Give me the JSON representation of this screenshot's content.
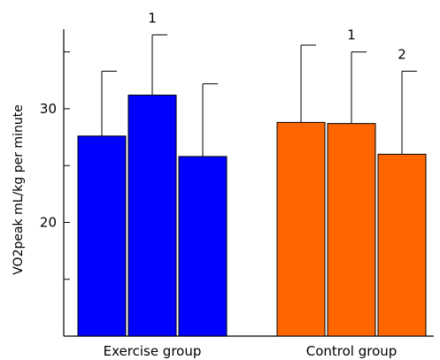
{
  "chart_data": {
    "type": "bar",
    "title": "",
    "xlabel": "",
    "ylabel": "VO2peak mL/kg per minute",
    "ylim": [
      10,
      37
    ],
    "yticks": [
      15,
      20,
      25,
      30,
      35
    ],
    "ytick_labels": [
      {
        "value": 20,
        "label": "20"
      },
      {
        "value": 30,
        "label": "30"
      }
    ],
    "grid": false,
    "legend": "none",
    "groups": [
      {
        "label": "Exercise group",
        "color": "#0000ff",
        "bars": [
          {
            "value": 27.6,
            "error": 5.7,
            "annotation": ""
          },
          {
            "value": 31.2,
            "error": 5.3,
            "annotation": "1"
          },
          {
            "value": 25.8,
            "error": 6.4,
            "annotation": ""
          }
        ]
      },
      {
        "label": "Control group",
        "color": "#ff6600",
        "bars": [
          {
            "value": 28.8,
            "error": 6.8,
            "annotation": ""
          },
          {
            "value": 28.7,
            "error": 6.3,
            "annotation": "1"
          },
          {
            "value": 26.0,
            "error": 7.3,
            "annotation": "2"
          }
        ]
      }
    ]
  }
}
